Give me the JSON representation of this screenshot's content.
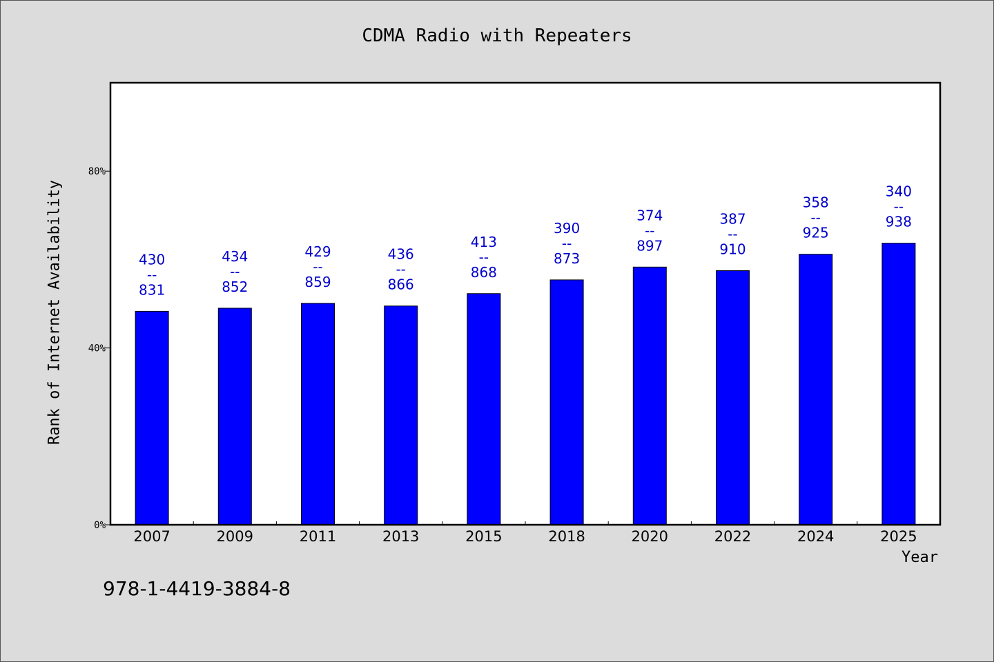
{
  "chart_data": {
    "type": "bar",
    "title": "CDMA Radio with Repeaters",
    "xlabel": "Year",
    "ylabel": "Rank of Internet Availability",
    "categories": [
      "2007",
      "2009",
      "2011",
      "2013",
      "2015",
      "2018",
      "2020",
      "2022",
      "2024",
      "2025"
    ],
    "values": [
      48.3,
      49.0,
      50.1,
      49.5,
      52.3,
      55.4,
      58.3,
      57.5,
      61.2,
      63.7
    ],
    "data_labels": [
      [
        "430",
        "--",
        "831"
      ],
      [
        "434",
        "--",
        "852"
      ],
      [
        "429",
        "--",
        "859"
      ],
      [
        "436",
        "--",
        "866"
      ],
      [
        "413",
        "--",
        "868"
      ],
      [
        "390",
        "--",
        "873"
      ],
      [
        "374",
        "--",
        "897"
      ],
      [
        "387",
        "--",
        "910"
      ],
      [
        "358",
        "--",
        "925"
      ],
      [
        "340",
        "--",
        "938"
      ]
    ],
    "ylim": [
      0,
      100
    ],
    "yticks": [
      0,
      40,
      80
    ],
    "ytick_labels": [
      "0%",
      "40%",
      "80%"
    ],
    "bar_color": "#0000ff",
    "label_color": "#0000cc",
    "grid": false,
    "legend": "none"
  },
  "footer": {
    "isbn": "978-1-4419-3884-8"
  }
}
